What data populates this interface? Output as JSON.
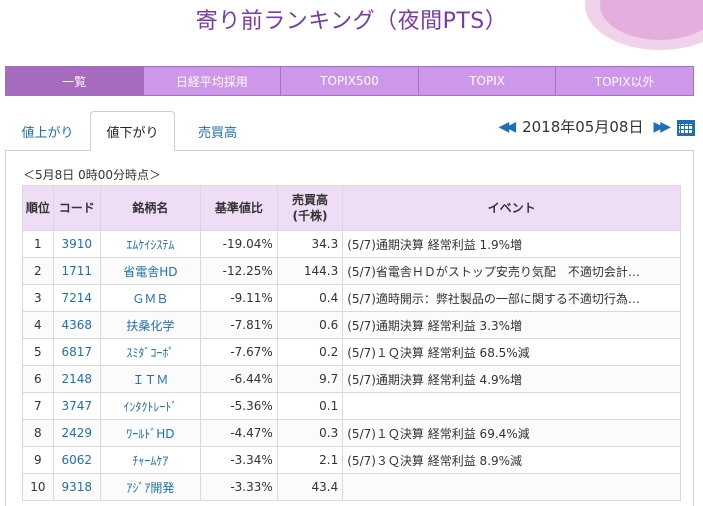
{
  "page": {
    "title": "寄り前ランキング（夜間PTS）"
  },
  "tabs": [
    {
      "label": "一覧",
      "active": true
    },
    {
      "label": "日経平均採用",
      "active": false
    },
    {
      "label": "TOPIX500",
      "active": false
    },
    {
      "label": "TOPIX",
      "active": false
    },
    {
      "label": "TOPIX以外",
      "active": false
    }
  ],
  "subtabs": [
    {
      "label": "値上がり",
      "active": false
    },
    {
      "label": "値下がり",
      "active": true
    },
    {
      "label": "売買高",
      "active": false
    }
  ],
  "datenav": {
    "prev": "◀◀",
    "date": "2018年05月08日",
    "next": "▶▶",
    "calendar": "calendar-icon"
  },
  "panel": {
    "timestamp": "＜5月8日 0時00分時点＞"
  },
  "table": {
    "headers": [
      "順位",
      "コード",
      "銘柄名",
      "基準値比",
      "売買高\n(千株)",
      "イベント"
    ],
    "rows": [
      {
        "rank": "1",
        "code": "3910",
        "name": "ｴﾑｹｲｼｽﾃﾑ",
        "pct": "-19.04%",
        "vol": "34.3",
        "event": "(5/7)通期決算 経常利益 1.9%増"
      },
      {
        "rank": "2",
        "code": "1711",
        "name": "省電舎HD",
        "pct": "-12.25%",
        "vol": "144.3",
        "event": "(5/7)省電舎ＨＤがストップ安売り気配　不適切会計…"
      },
      {
        "rank": "3",
        "code": "7214",
        "name": "ＧＭＢ",
        "pct": "-9.11%",
        "vol": "0.4",
        "event": "(5/7)適時開示：弊社製品の一部に関する不適切行為…"
      },
      {
        "rank": "4",
        "code": "4368",
        "name": "扶桑化学",
        "pct": "-7.81%",
        "vol": "0.6",
        "event": "(5/7)通期決算 経常利益 3.3%増"
      },
      {
        "rank": "5",
        "code": "6817",
        "name": "ｽﾐﾀﾞｺｰﾎﾟ",
        "pct": "-7.67%",
        "vol": "0.2",
        "event": "(5/7)１Ｑ決算 経常利益 68.5%減"
      },
      {
        "rank": "6",
        "code": "2148",
        "name": "ＩＴＭ",
        "pct": "-6.44%",
        "vol": "9.7",
        "event": "(5/7)通期決算 経常利益 4.9%増"
      },
      {
        "rank": "7",
        "code": "3747",
        "name": "ｲﾝﾀｸﾄﾚｰﾄﾞ",
        "pct": "-5.36%",
        "vol": "0.1",
        "event": ""
      },
      {
        "rank": "8",
        "code": "2429",
        "name": "ﾜｰﾙﾄﾞHD",
        "pct": "-4.47%",
        "vol": "0.3",
        "event": "(5/7)１Ｑ決算 経常利益 69.4%減"
      },
      {
        "rank": "9",
        "code": "6062",
        "name": "ﾁｬｰﾑｹｱ",
        "pct": "-3.34%",
        "vol": "2.1",
        "event": "(5/7)３Ｑ決算 経常利益 8.9%減"
      },
      {
        "rank": "10",
        "code": "9318",
        "name": "ｱｼﾞｱ開発",
        "pct": "-3.33%",
        "vol": "43.4",
        "event": ""
      }
    ]
  }
}
